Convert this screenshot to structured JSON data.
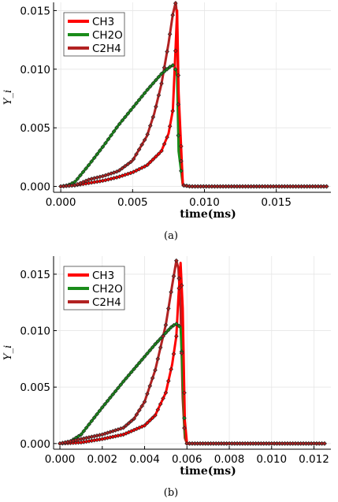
{
  "chart_data": [
    {
      "type": "line",
      "caption": "(a)",
      "xlabel": "time(ms)",
      "ylabel": "Y_i",
      "xlim": [
        -0.0005,
        0.0188
      ],
      "ylim": [
        -0.0005,
        0.0157
      ],
      "x_ticks": [
        "0.000",
        "0.005",
        "0.010",
        "0.015"
      ],
      "x_tick_values": [
        0,
        0.005,
        0.01,
        0.015
      ],
      "y_ticks": [
        "0.000",
        "0.005",
        "0.010",
        "0.015"
      ],
      "y_tick_values": [
        0,
        0.005,
        0.01,
        0.015
      ],
      "grid": true,
      "legend": "top-left",
      "series": [
        {
          "name": "CH3",
          "color": "#ff0000",
          "x": [
            0,
            0.001,
            0.002,
            0.003,
            0.004,
            0.005,
            0.006,
            0.007,
            0.0075,
            0.0078,
            0.008,
            0.0081,
            0.0082,
            0.0085,
            0.009,
            0.0185
          ],
          "y": [
            0,
            0.0001,
            0.0003,
            0.0005,
            0.0008,
            0.0012,
            0.0018,
            0.003,
            0.0045,
            0.0065,
            0.012,
            0.015,
            0.008,
            0.0001,
            0,
            0
          ]
        },
        {
          "name": "CH2O",
          "color": "#1a8c1a",
          "x": [
            0,
            0.0005,
            0.001,
            0.002,
            0.003,
            0.004,
            0.005,
            0.006,
            0.007,
            0.0076,
            0.0079,
            0.0081,
            0.0082,
            0.0085,
            0.009,
            0.0185
          ],
          "y": [
            0,
            0.0001,
            0.0004,
            0.0019,
            0.0035,
            0.0052,
            0.0067,
            0.0082,
            0.0096,
            0.0102,
            0.0104,
            0.0094,
            0.003,
            0.0001,
            0,
            0
          ]
        },
        {
          "name": "C2H4",
          "color": "#b22222",
          "x": [
            0,
            0.001,
            0.002,
            0.003,
            0.004,
            0.005,
            0.006,
            0.0065,
            0.007,
            0.0075,
            0.0078,
            0.008,
            0.0081,
            0.0082,
            0.0085,
            0.009,
            0.0185
          ],
          "y": [
            0,
            0.0001,
            0.0006,
            0.0009,
            0.0013,
            0.0022,
            0.0043,
            0.0062,
            0.0087,
            0.0122,
            0.0147,
            0.0157,
            0.0145,
            0.005,
            0.0001,
            0,
            0
          ]
        }
      ]
    },
    {
      "type": "line",
      "caption": "(b)",
      "xlabel": "time(ms)",
      "ylabel": "Y_i",
      "xlim": [
        -0.0003,
        0.0128
      ],
      "ylim": [
        -0.0005,
        0.0166
      ],
      "x_ticks": [
        "0.000",
        "0.002",
        "0.004",
        "0.006",
        "0.008",
        "0.010",
        "0.012"
      ],
      "x_tick_values": [
        0,
        0.002,
        0.004,
        0.006,
        0.008,
        0.01,
        0.012
      ],
      "y_ticks": [
        "0.000",
        "0.005",
        "0.010",
        "0.015"
      ],
      "y_tick_values": [
        0,
        0.005,
        0.01,
        0.015
      ],
      "grid": true,
      "legend": "top-left",
      "series": [
        {
          "name": "CH3",
          "color": "#ff0000",
          "x": [
            0,
            0.001,
            0.002,
            0.003,
            0.004,
            0.0045,
            0.005,
            0.0053,
            0.0055,
            0.0056,
            0.0057,
            0.0058,
            0.0059,
            0.006,
            0.0125
          ],
          "y": [
            0,
            0.0001,
            0.0004,
            0.0008,
            0.0016,
            0.0025,
            0.0045,
            0.007,
            0.0095,
            0.013,
            0.016,
            0.012,
            0.002,
            0,
            0
          ]
        },
        {
          "name": "CH2O",
          "color": "#1a8c1a",
          "x": [
            0,
            0.0005,
            0.001,
            0.002,
            0.003,
            0.004,
            0.0045,
            0.005,
            0.0053,
            0.0055,
            0.0057,
            0.0058,
            0.0059,
            0.006,
            0.0125
          ],
          "y": [
            0,
            0.0002,
            0.0008,
            0.0032,
            0.0055,
            0.0077,
            0.0088,
            0.0098,
            0.0104,
            0.0106,
            0.0103,
            0.006,
            0.001,
            0,
            0
          ]
        },
        {
          "name": "C2H4",
          "color": "#b22222",
          "x": [
            0,
            0.001,
            0.002,
            0.003,
            0.0035,
            0.004,
            0.0045,
            0.005,
            0.0053,
            0.0055,
            0.0056,
            0.0057,
            0.0058,
            0.0059,
            0.006,
            0.0125
          ],
          "y": [
            0,
            0.0004,
            0.0008,
            0.0014,
            0.0022,
            0.0037,
            0.0065,
            0.0105,
            0.014,
            0.0162,
            0.0155,
            0.012,
            0.004,
            0.0005,
            0,
            0
          ]
        }
      ]
    }
  ]
}
